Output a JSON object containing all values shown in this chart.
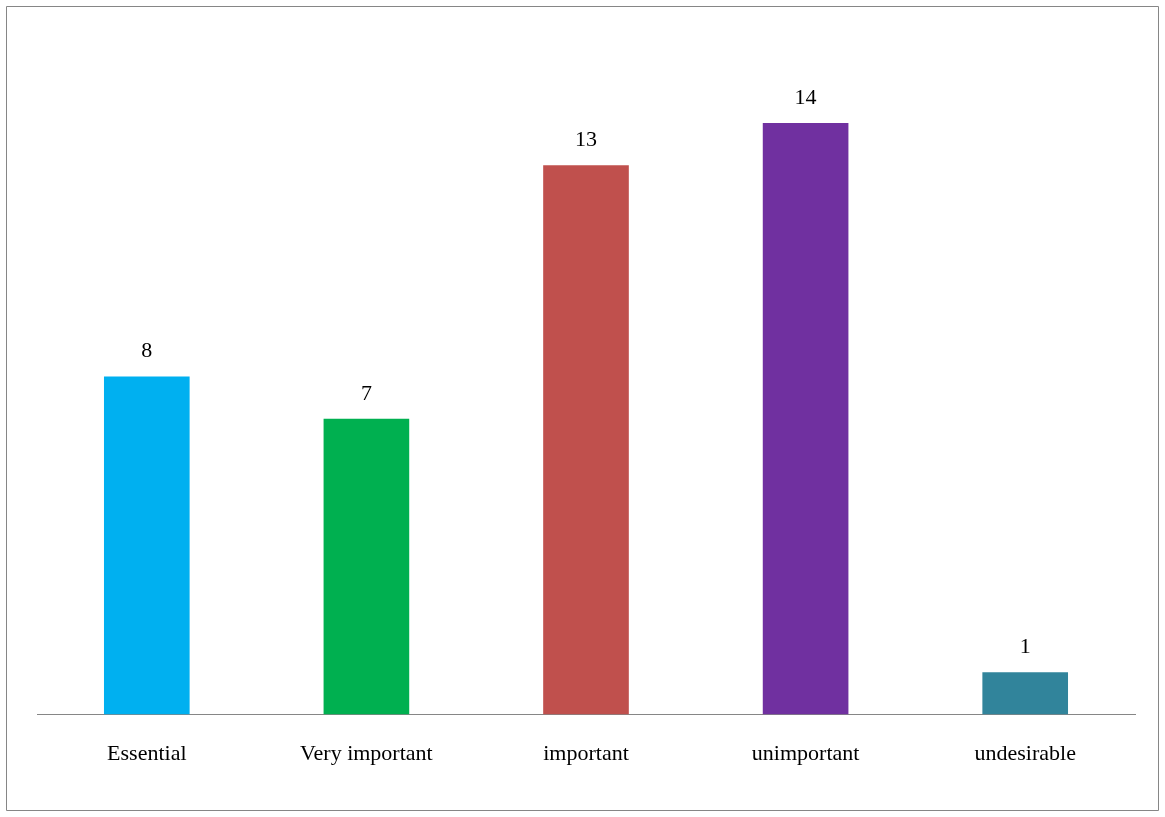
{
  "chart_data": {
    "type": "bar",
    "categories": [
      "Essential",
      "Very important",
      "important",
      "unimportant",
      "undesirable"
    ],
    "values": [
      8,
      7,
      13,
      14,
      1
    ],
    "colors": [
      "#00b0f0",
      "#00b050",
      "#c0504d",
      "#7030a0",
      "#31849b"
    ],
    "tick_labels": "x",
    "grid": false,
    "legend": false,
    "data_labels": true
  }
}
